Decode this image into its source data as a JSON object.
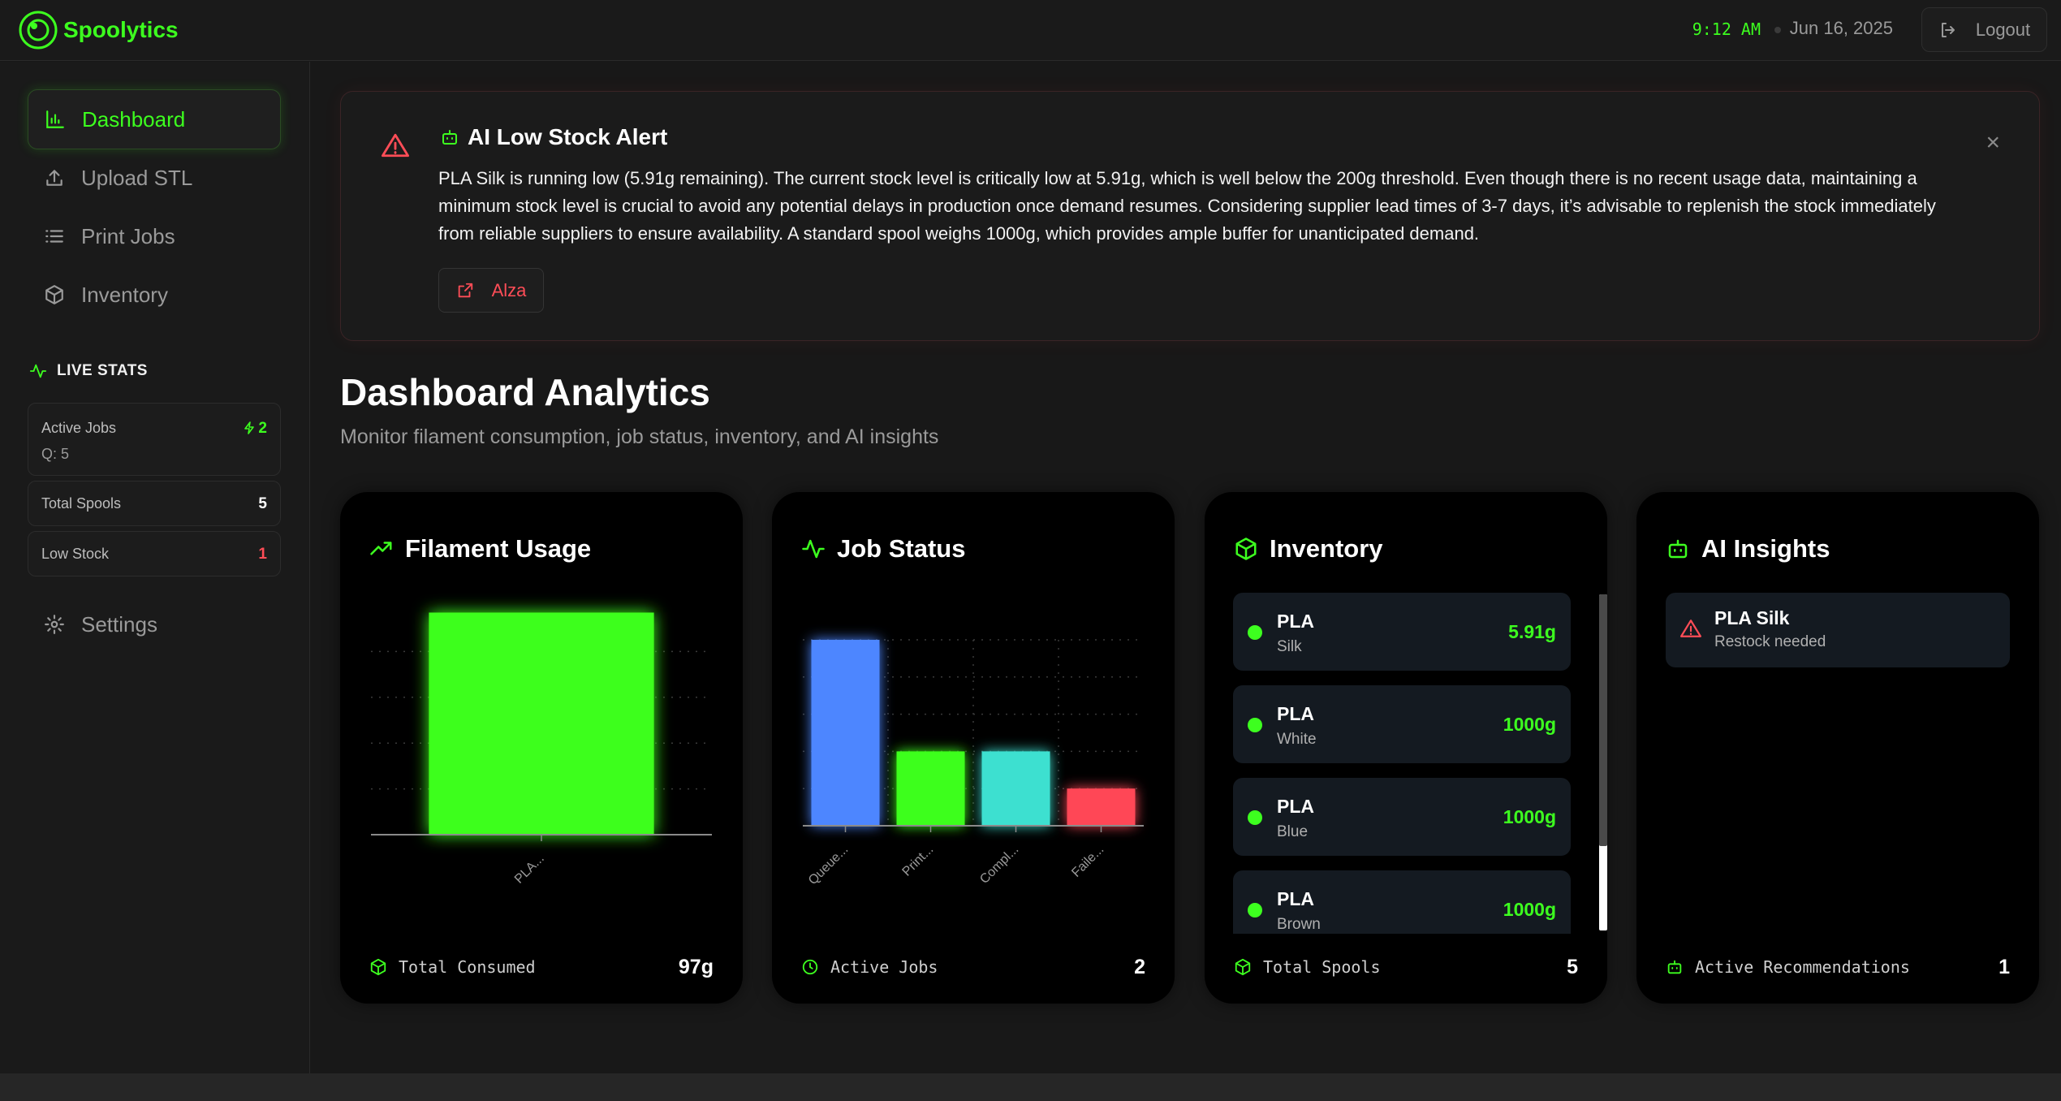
{
  "app": {
    "name": "Spoolytics",
    "time": "9:12 AM",
    "date": "Jun 16, 2025",
    "logout_label": "Logout",
    "accent": "#3dff1f"
  },
  "sidebar": {
    "items": [
      {
        "label": "Dashboard",
        "icon": "bar-chart-icon",
        "active": true
      },
      {
        "label": "Upload STL",
        "icon": "upload-icon",
        "active": false
      },
      {
        "label": "Print Jobs",
        "icon": "list-icon",
        "active": false
      },
      {
        "label": "Inventory",
        "icon": "box-icon",
        "active": false
      }
    ],
    "live_stats_title": "LIVE STATS",
    "stats": {
      "active_jobs_label": "Active Jobs",
      "active_jobs_value": "2",
      "queue_label": "Q: 5",
      "total_spools_label": "Total Spools",
      "total_spools_value": "5",
      "low_stock_label": "Low Stock",
      "low_stock_value": "1"
    },
    "settings_label": "Settings"
  },
  "alert": {
    "title": "AI Low Stock Alert",
    "body": "PLA Silk is running low (5.91g remaining). The current stock level is critically low at 5.91g, which is well below the 200g threshold. Even though there is no recent usage data, maintaining a minimum stock level is crucial to avoid any potential delays in production once demand resumes. Considering supplier lead times of 3-7 days, it’s advisable to replenish the stock immediately from reliable suppliers to ensure availability. A standard spool weighs 1000g, which provides ample buffer for unanticipated demand.",
    "link_label": "Alza",
    "close_symbol": "×"
  },
  "page": {
    "title": "Dashboard Analytics",
    "subtitle": "Monitor filament consumption, job status, inventory, and AI insights"
  },
  "cards": {
    "filament": {
      "title": "Filament Usage",
      "footer_label": "Total Consumed",
      "footer_value": "97g"
    },
    "jobs": {
      "title": "Job Status",
      "footer_label": "Active Jobs",
      "footer_value": "2"
    },
    "inventory": {
      "title": "Inventory",
      "items": [
        {
          "type": "PLA",
          "color": "Silk",
          "qty": "5.91g"
        },
        {
          "type": "PLA",
          "color": "White",
          "qty": "1000g"
        },
        {
          "type": "PLA",
          "color": "Blue",
          "qty": "1000g"
        },
        {
          "type": "PLA",
          "color": "Brown",
          "qty": "1000g"
        }
      ],
      "footer_label": "Total Spools",
      "footer_value": "5"
    },
    "ai": {
      "title": "AI Insights",
      "items": [
        {
          "name": "PLA Silk",
          "desc": "Restock needed"
        }
      ],
      "footer_label": "Active Recommendations",
      "footer_value": "1"
    }
  },
  "chart_data": [
    {
      "type": "bar",
      "categories": [
        "PLA..."
      ],
      "values": [
        97
      ],
      "colors": [
        "#3dff1f"
      ],
      "title": "",
      "xlabel": "",
      "ylabel": "",
      "ylim": [
        0,
        100
      ],
      "grid": true
    },
    {
      "type": "bar",
      "categories": [
        "Queue...",
        "Print...",
        "Compl...",
        "Faile..."
      ],
      "values": [
        5,
        2,
        2,
        1
      ],
      "colors": [
        "#4d86ff",
        "#3dff1f",
        "#3ee0d0",
        "#ff4757"
      ],
      "title": "",
      "xlabel": "",
      "ylabel": "",
      "ylim": [
        0,
        5
      ],
      "grid": true
    }
  ]
}
